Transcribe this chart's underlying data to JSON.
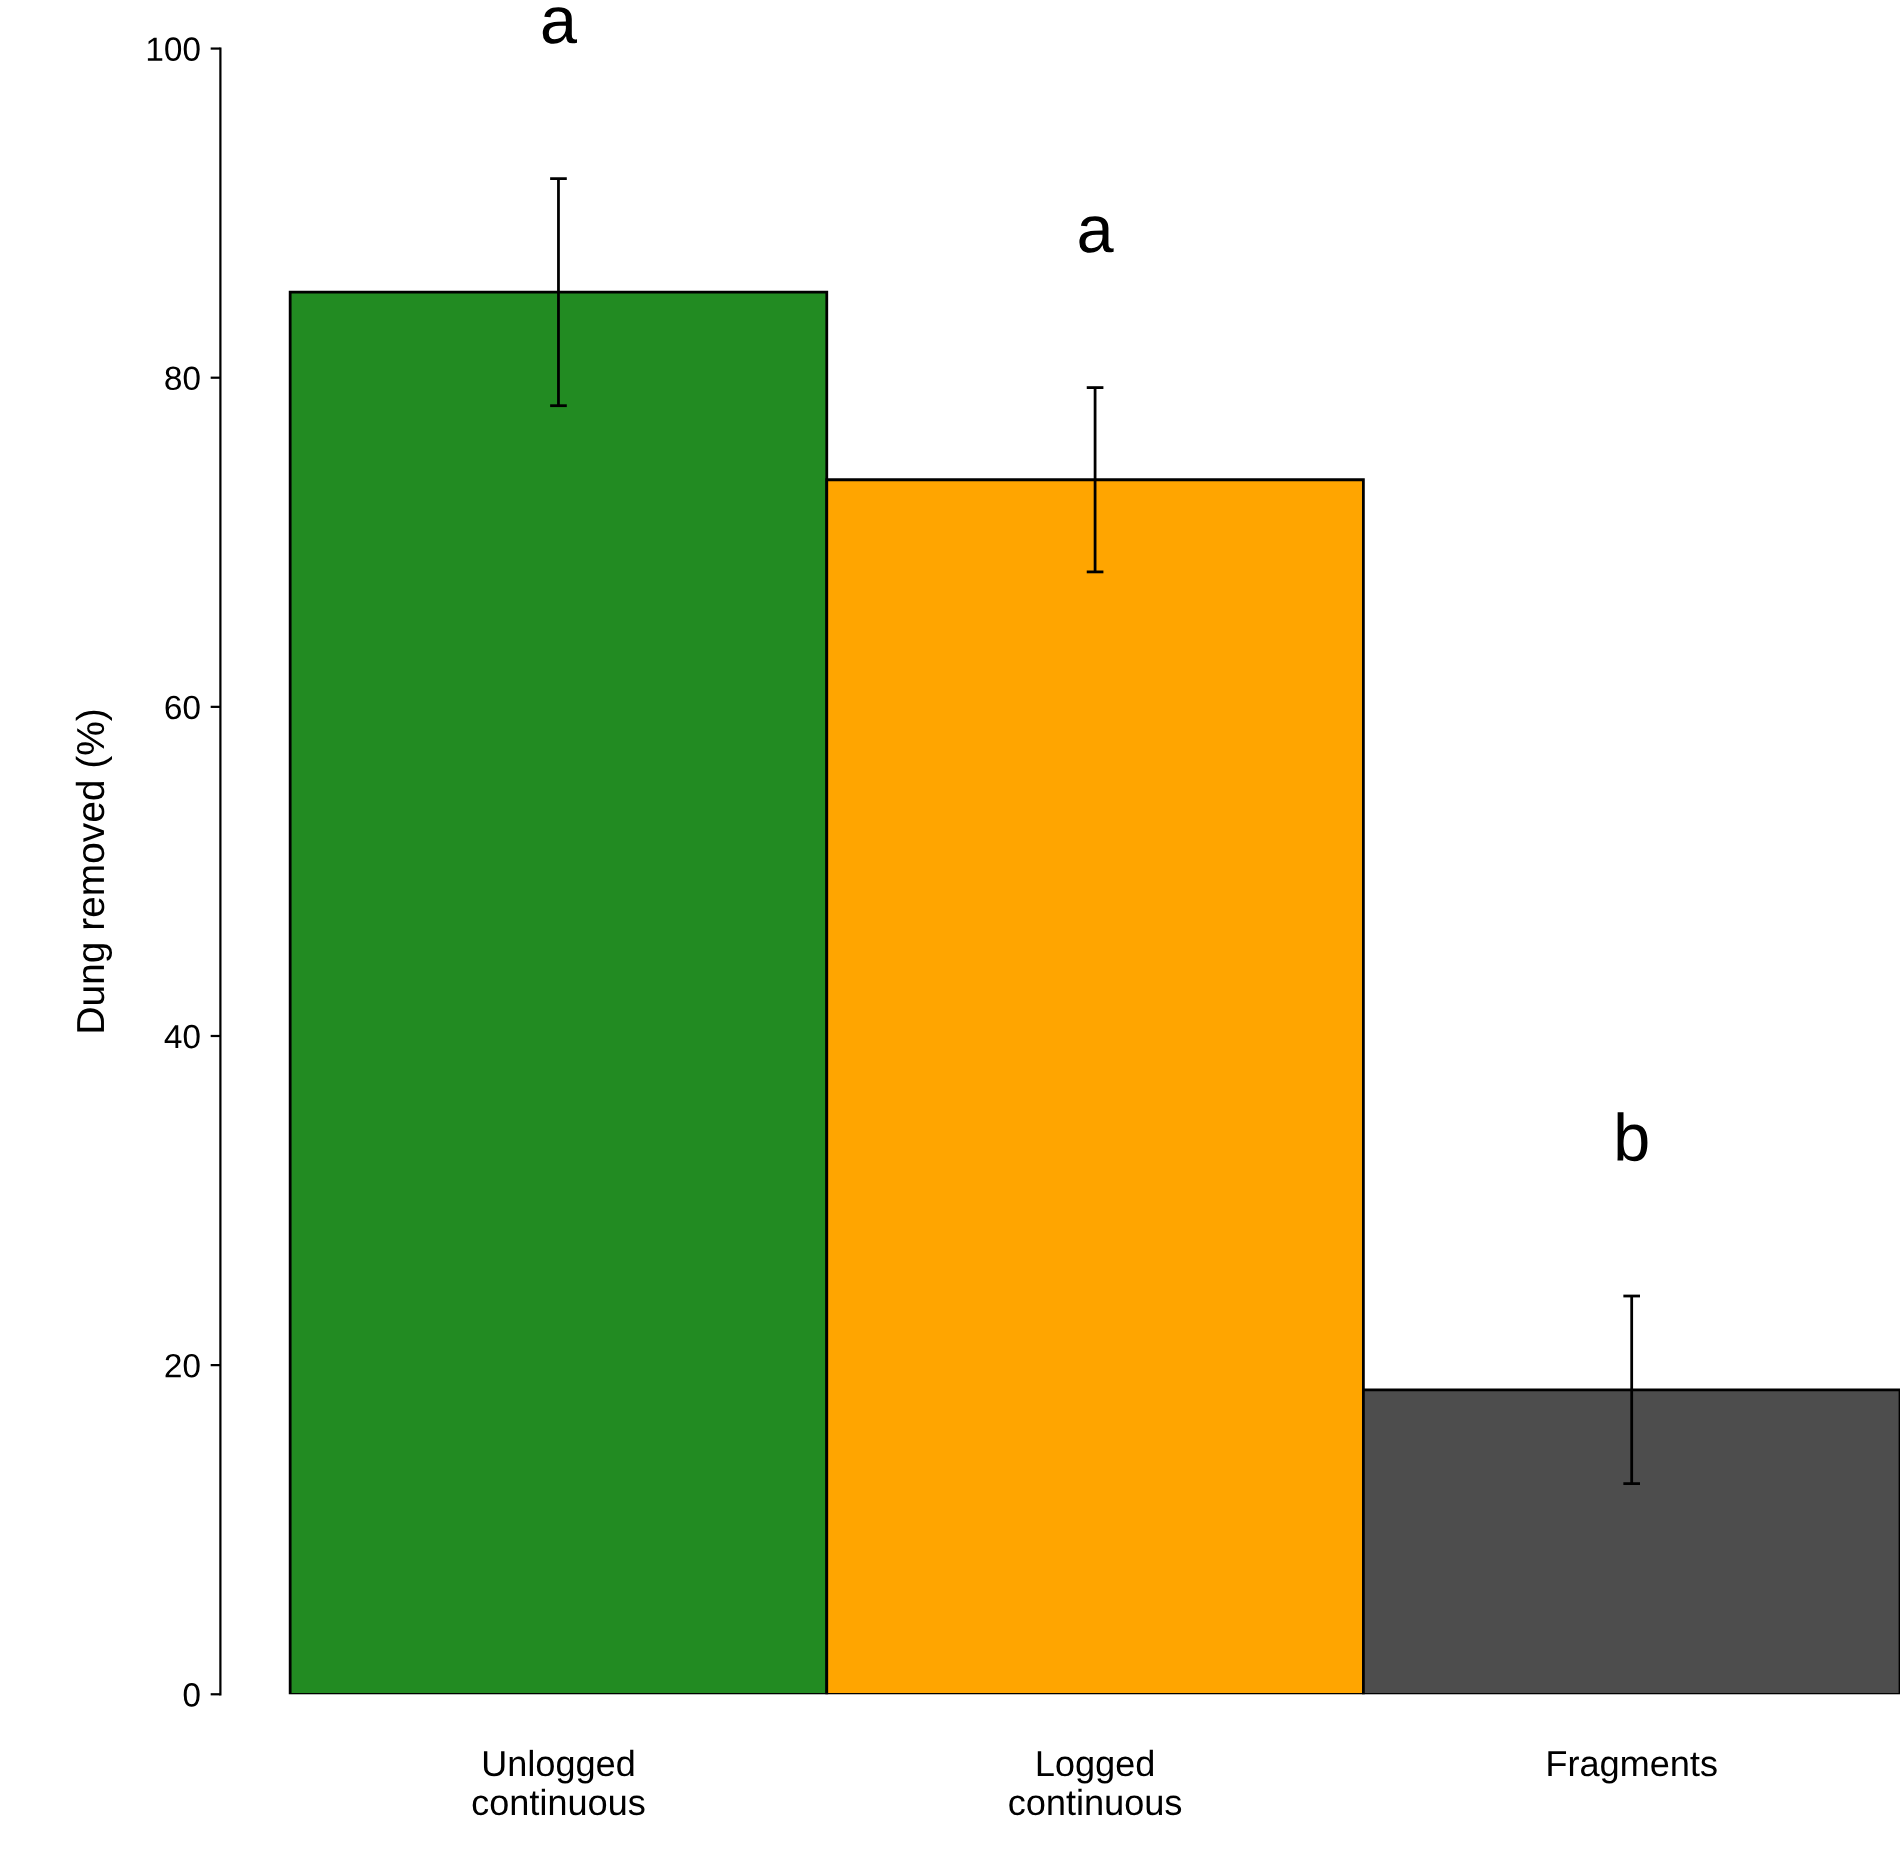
{
  "chart_data": {
    "type": "bar",
    "ylabel": "Dung removed (%)",
    "categories": [
      "Unlogged\ncontinuous",
      "Logged\ncontinuous",
      "Fragments"
    ],
    "values": [
      85.2,
      73.8,
      18.5
    ],
    "colors": [
      "#228b22",
      "#ffa500",
      "#4d4d4d"
    ],
    "errors": [
      6.9,
      5.6,
      5.7
    ],
    "ylim": [
      0,
      100
    ],
    "yticks": [
      0,
      20,
      40,
      60,
      80,
      100
    ],
    "annotations": [
      "a",
      "a",
      "b"
    ]
  }
}
